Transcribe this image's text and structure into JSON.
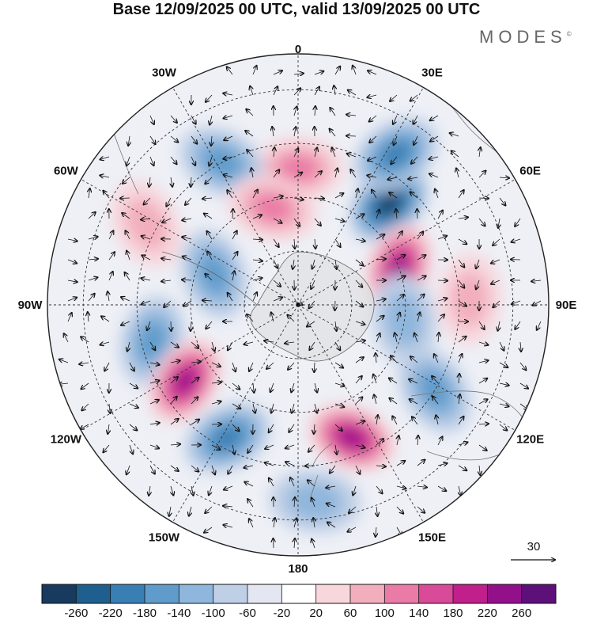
{
  "title": "Base 12/09/2025 00 UTC, valid 13/09/2025 00 UTC",
  "brand": "MODES",
  "brand_mark": "©",
  "longitude_labels": [
    "0",
    "30E",
    "60E",
    "90E",
    "120E",
    "150E",
    "180",
    "150W",
    "120W",
    "90W",
    "60W",
    "30W"
  ],
  "vector_reference": {
    "label": "30",
    "magnitude": 30
  },
  "colorbar": {
    "ticks": [
      "-260",
      "-220",
      "-180",
      "-140",
      "-100",
      "-60",
      "-20",
      "20",
      "60",
      "100",
      "140",
      "180",
      "220",
      "260"
    ],
    "colors": [
      "#173a5e",
      "#1f5f8f",
      "#3a7fb3",
      "#5f9bcb",
      "#8fb6dc",
      "#bfcfe6",
      "#e4e6f1",
      "#ffffff",
      "#f7d6dc",
      "#f2aebd",
      "#ea7aa6",
      "#d94a98",
      "#c01f8c",
      "#92108a",
      "#5d0f7a"
    ]
  },
  "anomaly_centers": [
    {
      "name": "positive-center-north",
      "lon": 0,
      "lat": -52,
      "value": 120
    },
    {
      "name": "negative-center-30w",
      "lon": -28,
      "lat": -45,
      "value": -110
    },
    {
      "name": "negative-center-45e",
      "lon": 42,
      "lat": -52,
      "value": -240
    },
    {
      "name": "positive-center-70e",
      "lon": 70,
      "lat": -60,
      "value": 230
    },
    {
      "name": "negative-center-35e-north",
      "lon": 33,
      "lat": -40,
      "value": -140
    },
    {
      "name": "negative-center-100w",
      "lon": -104,
      "lat": -48,
      "value": -130
    },
    {
      "name": "positive-center-120w",
      "lon": -124,
      "lat": -52,
      "value": 220
    },
    {
      "name": "negative-center-150w",
      "lon": -152,
      "lat": -48,
      "value": -170
    },
    {
      "name": "positive-center-160e",
      "lon": 158,
      "lat": -50,
      "value": 220
    },
    {
      "name": "negative-center-120e",
      "lon": 122,
      "lat": -45,
      "value": -110
    },
    {
      "name": "negative-center-100e",
      "lon": 98,
      "lat": -60,
      "value": -90
    },
    {
      "name": "positive-center-90e",
      "lon": 88,
      "lat": -42,
      "value": 80
    },
    {
      "name": "negative-center-75w",
      "lon": -70,
      "lat": -65,
      "value": -120
    },
    {
      "name": "positive-center-20w",
      "lon": -15,
      "lat": -62,
      "value": 110
    },
    {
      "name": "positive-center-65w",
      "lon": -62,
      "lat": -42,
      "value": 60
    },
    {
      "name": "negative-center-180",
      "lon": 175,
      "lat": -35,
      "value": -70
    }
  ]
}
